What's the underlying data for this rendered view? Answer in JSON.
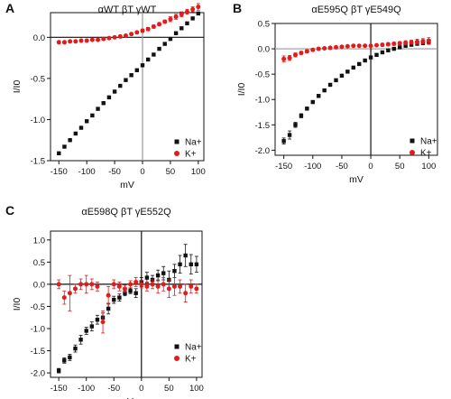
{
  "colors": {
    "na": "#111111",
    "k": "#e31b1b",
    "axis": "#111111",
    "zeroLine": "#9a9a9a"
  },
  "chart_data": [
    {
      "panel": "A",
      "type": "scatter",
      "title": "αWT βT γWT",
      "xlabel": "mV",
      "ylabel": "I/I0",
      "xlim": [
        -165,
        110
      ],
      "ylim": [
        -1.5,
        0.3
      ],
      "xticks": [
        -150,
        -100,
        -50,
        0,
        50,
        100
      ],
      "yticks": [
        -1.5,
        -1.0,
        -0.5,
        0.0
      ],
      "xtick_labels": [
        "-150",
        "-100",
        "-50",
        "0",
        "50",
        "100"
      ],
      "ytick_labels": [
        "-1.5",
        "-1.0",
        "-0.5",
        "0.0"
      ],
      "hline": {
        "y": 0,
        "color": "#111111"
      },
      "vline": {
        "x": 0,
        "color": "#9a9a9a"
      },
      "legend": "bottom-right",
      "series": [
        {
          "name": "Na+",
          "marker": "square",
          "color": "#111111",
          "x": [
            -150,
            -140,
            -130,
            -120,
            -110,
            -100,
            -90,
            -80,
            -70,
            -60,
            -50,
            -40,
            -30,
            -20,
            -10,
            0,
            10,
            20,
            30,
            40,
            50,
            60,
            70,
            80,
            90,
            100
          ],
          "y": [
            -1.41,
            -1.33,
            -1.25,
            -1.17,
            -1.1,
            -1.02,
            -0.95,
            -0.87,
            -0.8,
            -0.73,
            -0.66,
            -0.59,
            -0.52,
            -0.46,
            -0.4,
            -0.34,
            -0.27,
            -0.21,
            -0.14,
            -0.08,
            -0.02,
            0.05,
            0.11,
            0.17,
            0.23,
            0.29
          ]
        },
        {
          "name": "K+",
          "marker": "circle",
          "color": "#e31b1b",
          "x": [
            -150,
            -140,
            -130,
            -120,
            -110,
            -100,
            -90,
            -80,
            -70,
            -60,
            -50,
            -40,
            -30,
            -20,
            -10,
            0,
            10,
            20,
            30,
            40,
            50,
            60,
            70,
            80,
            90,
            100
          ],
          "y": [
            -0.06,
            -0.06,
            -0.05,
            -0.05,
            -0.04,
            -0.04,
            -0.03,
            -0.03,
            -0.02,
            -0.01,
            0.0,
            0.01,
            0.02,
            0.04,
            0.06,
            0.08,
            0.1,
            0.13,
            0.16,
            0.19,
            0.22,
            0.25,
            0.28,
            0.31,
            0.34,
            0.37
          ],
          "err": [
            0.01,
            0.01,
            0.01,
            0.01,
            0.01,
            0.01,
            0.01,
            0.01,
            0.01,
            0.01,
            0.01,
            0.01,
            0.01,
            0.01,
            0.01,
            0.02,
            0.02,
            0.02,
            0.02,
            0.02,
            0.03,
            0.03,
            0.03,
            0.03,
            0.03,
            0.04
          ]
        }
      ]
    },
    {
      "panel": "B",
      "type": "scatter",
      "title": "αE595Q βT γE549Q",
      "xlabel": "mV",
      "ylabel": "I/I0",
      "xlim": [
        -165,
        115
      ],
      "ylim": [
        -2.1,
        0.5
      ],
      "xticks": [
        -150,
        -100,
        -50,
        0,
        50,
        100
      ],
      "yticks": [
        -2.0,
        -1.5,
        -1.0,
        -0.5,
        0.0,
        0.5
      ],
      "xtick_labels": [
        "-150",
        "-100",
        "-50",
        "0",
        "50",
        "100"
      ],
      "ytick_labels": [
        "-2.0",
        "-1.5",
        "-1.0",
        "-0.5",
        "0.0",
        "0.5"
      ],
      "hline": {
        "y": 0,
        "color": "#9a9a9a"
      },
      "vline": {
        "x": 0,
        "color": "#111111"
      },
      "legend": "bottom-right",
      "series": [
        {
          "name": "Na+",
          "marker": "square",
          "color": "#111111",
          "x": [
            -150,
            -140,
            -130,
            -120,
            -110,
            -100,
            -90,
            -80,
            -70,
            -60,
            -50,
            -40,
            -30,
            -20,
            -10,
            0,
            10,
            20,
            30,
            40,
            50,
            60,
            70,
            80,
            90,
            100
          ],
          "y": [
            -1.82,
            -1.7,
            -1.5,
            -1.32,
            -1.18,
            -1.05,
            -0.93,
            -0.82,
            -0.71,
            -0.62,
            -0.53,
            -0.45,
            -0.37,
            -0.3,
            -0.23,
            -0.17,
            -0.12,
            -0.07,
            -0.03,
            0.0,
            0.03,
            0.06,
            0.08,
            0.1,
            0.12,
            0.14
          ],
          "err": [
            0.06,
            0.08,
            0.05,
            0.04,
            0.03,
            0.03,
            0.03,
            0.02,
            0.02,
            0.02,
            0.02,
            0.02,
            0.02,
            0.02,
            0.02,
            0.02,
            0.02,
            0.02,
            0.02,
            0.02,
            0.02,
            0.02,
            0.02,
            0.03,
            0.04,
            0.05
          ]
        },
        {
          "name": "K+",
          "marker": "circle",
          "color": "#e31b1b",
          "x": [
            -150,
            -140,
            -130,
            -120,
            -110,
            -100,
            -90,
            -80,
            -70,
            -60,
            -50,
            -40,
            -30,
            -20,
            -10,
            0,
            10,
            20,
            30,
            40,
            50,
            60,
            70,
            80,
            90,
            100
          ],
          "y": [
            -0.2,
            -0.18,
            -0.12,
            -0.08,
            -0.05,
            -0.02,
            0.0,
            0.01,
            0.02,
            0.03,
            0.04,
            0.05,
            0.06,
            0.06,
            0.06,
            0.06,
            0.07,
            0.08,
            0.09,
            0.1,
            0.11,
            0.12,
            0.13,
            0.14,
            0.15,
            0.16
          ],
          "err": [
            0.06,
            0.05,
            0.04,
            0.03,
            0.03,
            0.02,
            0.02,
            0.02,
            0.02,
            0.02,
            0.02,
            0.02,
            0.02,
            0.02,
            0.02,
            0.02,
            0.02,
            0.03,
            0.03,
            0.03,
            0.03,
            0.04,
            0.04,
            0.05,
            0.05,
            0.06
          ]
        }
      ]
    },
    {
      "panel": "C",
      "type": "scatter",
      "title": "αE598Q βT γE552Q",
      "xlabel": "mV",
      "ylabel": "I/I0",
      "xlim": [
        -165,
        110
      ],
      "ylim": [
        -2.1,
        1.2
      ],
      "xticks": [
        -150,
        -100,
        -50,
        0,
        50,
        100
      ],
      "yticks": [
        -2.0,
        -1.5,
        -1.0,
        -0.5,
        0.0,
        0.5,
        1.0
      ],
      "xtick_labels": [
        "-150",
        "-100",
        "-50",
        "0",
        "50",
        "100"
      ],
      "ytick_labels": [
        "-2.0",
        "-1.5",
        "-1.0",
        "-0.5",
        "0.0",
        "0.5",
        "1.0"
      ],
      "hline": {
        "y": 0,
        "color": "#111111"
      },
      "vline": {
        "x": 0,
        "color": "#111111"
      },
      "legend": "bottom-right",
      "series": [
        {
          "name": "Na+",
          "marker": "square",
          "color": "#111111",
          "x": [
            -150,
            -140,
            -130,
            -120,
            -110,
            -100,
            -90,
            -80,
            -70,
            -60,
            -50,
            -40,
            -30,
            -20,
            -10,
            0,
            10,
            20,
            30,
            40,
            50,
            60,
            70,
            80,
            90,
            100
          ],
          "y": [
            -1.95,
            -1.72,
            -1.65,
            -1.45,
            -1.25,
            -1.05,
            -0.95,
            -0.8,
            -0.75,
            -0.55,
            -0.35,
            -0.3,
            -0.2,
            -0.15,
            -0.2,
            0.05,
            0.15,
            0.1,
            0.2,
            0.25,
            0.1,
            0.3,
            0.45,
            0.65,
            0.45,
            0.45
          ],
          "err": [
            0.05,
            0.06,
            0.07,
            0.08,
            0.1,
            0.08,
            0.1,
            0.1,
            0.1,
            0.12,
            0.08,
            0.08,
            0.06,
            0.06,
            0.1,
            0.1,
            0.12,
            0.1,
            0.12,
            0.15,
            0.2,
            0.15,
            0.2,
            0.25,
            0.22,
            0.18
          ]
        },
        {
          "name": "K+",
          "marker": "circle",
          "color": "#e31b1b",
          "x": [
            -150,
            -140,
            -130,
            -120,
            -110,
            -100,
            -90,
            -80,
            -70,
            -60,
            -50,
            -40,
            -30,
            -20,
            -10,
            0,
            10,
            20,
            30,
            40,
            50,
            60,
            70,
            80,
            90,
            100
          ],
          "y": [
            0.0,
            -0.3,
            -0.2,
            -0.1,
            0.0,
            0.0,
            0.0,
            -0.05,
            -0.85,
            -0.25,
            0.0,
            -0.05,
            -0.1,
            0.0,
            0.05,
            0.0,
            -0.05,
            0.0,
            -0.05,
            0.0,
            -0.1,
            -0.05,
            -0.05,
            -0.2,
            -0.05,
            -0.1
          ],
          "err": [
            0.1,
            0.15,
            0.4,
            0.1,
            0.12,
            0.2,
            0.12,
            0.1,
            0.25,
            0.2,
            0.1,
            0.1,
            0.08,
            0.08,
            0.1,
            0.08,
            0.1,
            0.1,
            0.15,
            0.15,
            0.2,
            0.2,
            0.15,
            0.2,
            0.15,
            0.1
          ]
        }
      ]
    }
  ]
}
